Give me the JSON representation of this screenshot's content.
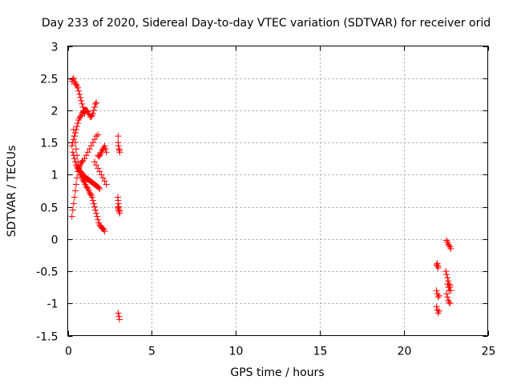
{
  "chart_data": {
    "type": "scatter",
    "title": "Day 233 of 2020, Sidereal Day-to-day VTEC variation (SDTVAR) for receiver orid",
    "xlabel": "GPS time / hours",
    "ylabel": "SDTVAR / TECUs",
    "xlim": [
      0,
      25
    ],
    "ylim": [
      -1.5,
      3
    ],
    "xticks": [
      0,
      5,
      10,
      15,
      20,
      25
    ],
    "xtick_labels": [
      "0",
      "5",
      "10",
      "15",
      "20",
      "25"
    ],
    "yticks": [
      -1.5,
      -1,
      -0.5,
      0,
      0.5,
      1,
      1.5,
      2,
      2.5,
      3
    ],
    "ytick_labels": [
      "-1.5",
      "-1",
      "-0.5",
      "0",
      "0.5",
      "1",
      "1.5",
      "2",
      "2.5",
      "3"
    ],
    "grid": true,
    "marker": "+",
    "color": "#ff0000",
    "series": [
      {
        "name": "SDTVAR",
        "x": [
          0.25,
          0.3,
          0.35,
          0.4,
          0.45,
          0.5,
          0.55,
          0.6,
          0.65,
          0.7,
          0.75,
          0.8,
          0.85,
          0.9,
          0.95,
          1.0,
          0.25,
          0.3,
          0.35,
          0.4,
          0.45,
          0.5,
          0.55,
          0.6,
          0.65,
          0.7,
          0.75,
          0.8,
          0.85,
          0.9,
          0.95,
          1.0,
          1.05,
          1.1,
          1.15,
          1.2,
          1.25,
          1.3,
          1.35,
          1.4,
          1.45,
          1.5,
          1.55,
          1.6,
          1.65,
          1.7,
          0.25,
          0.3,
          0.35,
          0.4,
          0.45,
          0.5,
          0.55,
          0.6,
          0.65,
          0.7,
          0.75,
          0.8,
          0.85,
          0.9,
          1.0,
          1.1,
          1.2,
          1.3,
          1.4,
          1.5,
          1.6,
          1.7,
          1.8,
          0.35,
          0.4,
          0.45,
          0.5,
          0.55,
          0.6,
          0.65,
          0.7,
          0.75,
          0.8,
          0.85,
          0.9,
          0.95,
          1.0,
          1.05,
          1.1,
          1.15,
          1.2,
          1.25,
          1.3,
          1.35,
          1.4,
          1.45,
          1.5,
          1.55,
          1.6,
          1.65,
          1.7,
          1.75,
          1.8,
          1.85,
          1.9,
          1.95,
          2.0,
          2.05,
          2.1,
          2.15,
          2.2,
          0.3,
          0.35,
          0.4,
          0.45,
          0.5,
          0.55,
          0.6,
          0.65,
          0.7,
          0.75,
          0.8,
          0.85,
          0.9,
          0.95,
          1.0,
          1.05,
          1.1,
          1.15,
          1.2,
          1.25,
          1.3,
          1.35,
          1.4,
          1.45,
          1.5,
          1.55,
          1.6,
          1.65,
          1.7,
          1.75,
          1.8,
          1.85,
          1.9,
          1.8,
          1.85,
          1.9,
          1.95,
          2.0,
          2.05,
          2.1,
          2.15,
          2.2,
          2.25,
          2.3,
          1.6,
          1.7,
          1.8,
          1.9,
          2.0,
          2.1,
          2.2,
          2.3,
          3.0,
          3.0,
          3.02,
          3.05,
          3.08,
          3.1,
          2.98,
          3.0,
          3.02,
          3.05,
          3.08,
          2.98,
          3.0,
          3.03,
          3.06,
          3.1,
          3.0,
          3.05,
          3.08,
          21.95,
          22.0,
          22.05,
          22.1,
          21.95,
          22.0,
          22.05,
          21.95,
          22.0,
          22.05,
          22.1,
          22.0,
          22.05,
          22.55,
          22.6,
          22.65,
          22.7,
          22.75,
          22.8,
          22.5,
          22.55,
          22.6,
          22.65,
          22.7,
          22.75,
          22.8,
          22.55,
          22.6,
          22.65,
          22.7,
          22.75,
          22.6,
          22.65,
          22.7,
          22.75
        ],
        "y": [
          2.45,
          2.48,
          2.5,
          2.45,
          2.42,
          2.4,
          2.38,
          2.35,
          2.3,
          2.25,
          2.2,
          2.15,
          2.1,
          2.05,
          2.0,
          1.95,
          1.45,
          1.5,
          1.55,
          1.6,
          1.65,
          1.7,
          1.75,
          1.8,
          1.85,
          1.88,
          1.9,
          1.92,
          1.95,
          1.97,
          1.98,
          2.0,
          2.0,
          2.0,
          2.0,
          1.98,
          1.95,
          1.93,
          1.9,
          1.9,
          1.92,
          1.95,
          2.0,
          2.05,
          2.1,
          2.12,
          0.35,
          0.45,
          0.55,
          0.65,
          0.75,
          0.85,
          0.95,
          1.05,
          1.1,
          1.12,
          1.15,
          1.18,
          1.2,
          1.22,
          1.25,
          1.3,
          1.35,
          1.4,
          1.45,
          1.5,
          1.55,
          1.6,
          1.62,
          1.7,
          1.6,
          1.5,
          1.4,
          1.3,
          1.2,
          1.1,
          1.05,
          1.0,
          0.98,
          0.95,
          0.92,
          0.9,
          0.88,
          0.85,
          0.82,
          0.8,
          0.78,
          0.75,
          0.72,
          0.7,
          0.68,
          0.65,
          0.6,
          0.55,
          0.5,
          0.45,
          0.4,
          0.35,
          0.3,
          0.25,
          0.22,
          0.2,
          0.18,
          0.17,
          0.16,
          0.15,
          0.12,
          1.35,
          1.3,
          1.25,
          1.2,
          1.15,
          1.12,
          1.1,
          1.08,
          1.06,
          1.05,
          1.04,
          1.02,
          1.0,
          0.98,
          0.97,
          0.96,
          0.95,
          0.94,
          0.93,
          0.92,
          0.91,
          0.9,
          0.89,
          0.88,
          0.87,
          0.86,
          0.85,
          0.84,
          0.83,
          0.82,
          0.81,
          0.8,
          0.78,
          1.3,
          1.28,
          1.3,
          1.32,
          1.35,
          1.38,
          1.4,
          1.42,
          1.45,
          1.4,
          1.35,
          1.2,
          1.15,
          1.1,
          1.05,
          1.0,
          0.95,
          0.9,
          0.85,
          1.6,
          1.5,
          1.45,
          1.4,
          1.38,
          1.35,
          0.65,
          0.6,
          0.55,
          0.5,
          0.45,
          0.5,
          0.48,
          0.45,
          0.43,
          0.4,
          -1.15,
          -1.2,
          -1.25,
          -1.05,
          -1.1,
          -1.15,
          -1.12,
          -0.4,
          -0.42,
          -0.45,
          -0.8,
          -0.85,
          -0.9,
          -0.88,
          -0.38,
          -0.42,
          -0.02,
          -0.05,
          -0.08,
          -0.1,
          -0.12,
          -0.15,
          -0.5,
          -0.55,
          -0.6,
          -0.65,
          -0.7,
          -0.75,
          -0.8,
          -0.85,
          -0.9,
          -0.95,
          -0.98,
          -1.0,
          -0.7,
          -0.75,
          -0.8,
          -0.72
        ]
      }
    ]
  }
}
